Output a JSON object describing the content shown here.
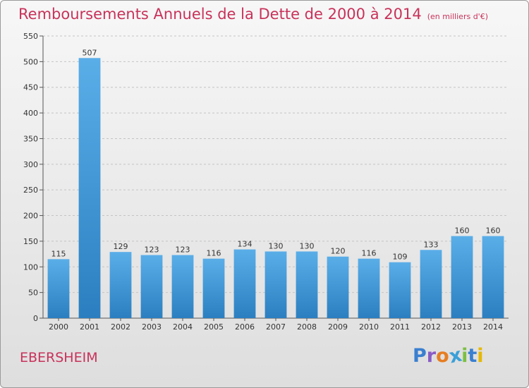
{
  "header": {
    "title": "Remboursements Annuels de la Dette de 2000 à 2014",
    "unit": "(en milliers d'€)"
  },
  "footer": {
    "commune": "EBERSHEIM",
    "logo": [
      "P",
      "r",
      "o",
      "x",
      "i",
      "t",
      "i"
    ],
    "logo_colors": [
      "#3a7fd0",
      "#8a5cc4",
      "#e67e22",
      "#3aa0d8",
      "#7cc043",
      "#3a7fd0",
      "#e6b800"
    ]
  },
  "chart_data": {
    "type": "bar",
    "title": "Remboursements Annuels de la Dette de 2000 à 2014",
    "ylabel": "",
    "xlabel": "",
    "ylim": [
      0,
      550
    ],
    "yticks": [
      0,
      50,
      100,
      150,
      200,
      250,
      300,
      350,
      400,
      450,
      500,
      550
    ],
    "grid": true,
    "categories": [
      "2000",
      "2001",
      "2002",
      "2003",
      "2004",
      "2005",
      "2006",
      "2007",
      "2008",
      "2009",
      "2010",
      "2011",
      "2012",
      "2013",
      "2014"
    ],
    "values": [
      115,
      507,
      129,
      123,
      123,
      116,
      134,
      130,
      130,
      120,
      116,
      109,
      133,
      160,
      160
    ],
    "bar_color_top": "#5aaee8",
    "bar_color_bottom": "#2b7fc0"
  }
}
